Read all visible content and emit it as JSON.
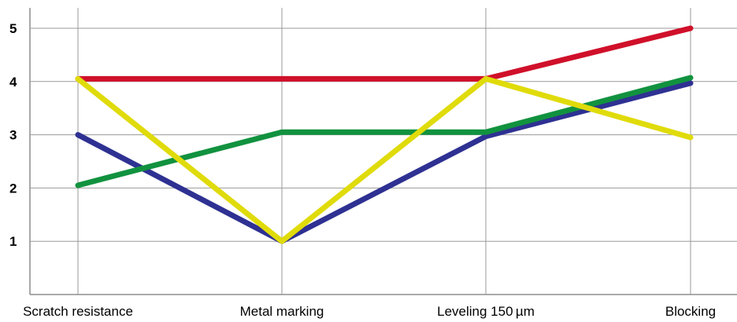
{
  "chart_data": {
    "type": "line",
    "title": "",
    "xlabel": "",
    "ylabel": "",
    "categories": [
      "Scratch resistance",
      "Metal marking",
      "Leveling 150 µm",
      "Blocking"
    ],
    "yticks": [
      1,
      2,
      3,
      4,
      5
    ],
    "ylim": [
      0,
      5.4
    ],
    "grid": true,
    "legend": "none",
    "series": [
      {
        "color": "#d0102a",
        "values": [
          4.05,
          4.05,
          4.05,
          5
        ]
      },
      {
        "color": "#2e3192",
        "values": [
          3,
          1,
          2.97,
          3.97
        ]
      },
      {
        "color": "#11923f",
        "values": [
          2.05,
          3.05,
          3.05,
          4.07
        ]
      },
      {
        "color": "#e0db0a",
        "values": [
          4.05,
          1,
          4.05,
          2.95
        ]
      }
    ]
  }
}
